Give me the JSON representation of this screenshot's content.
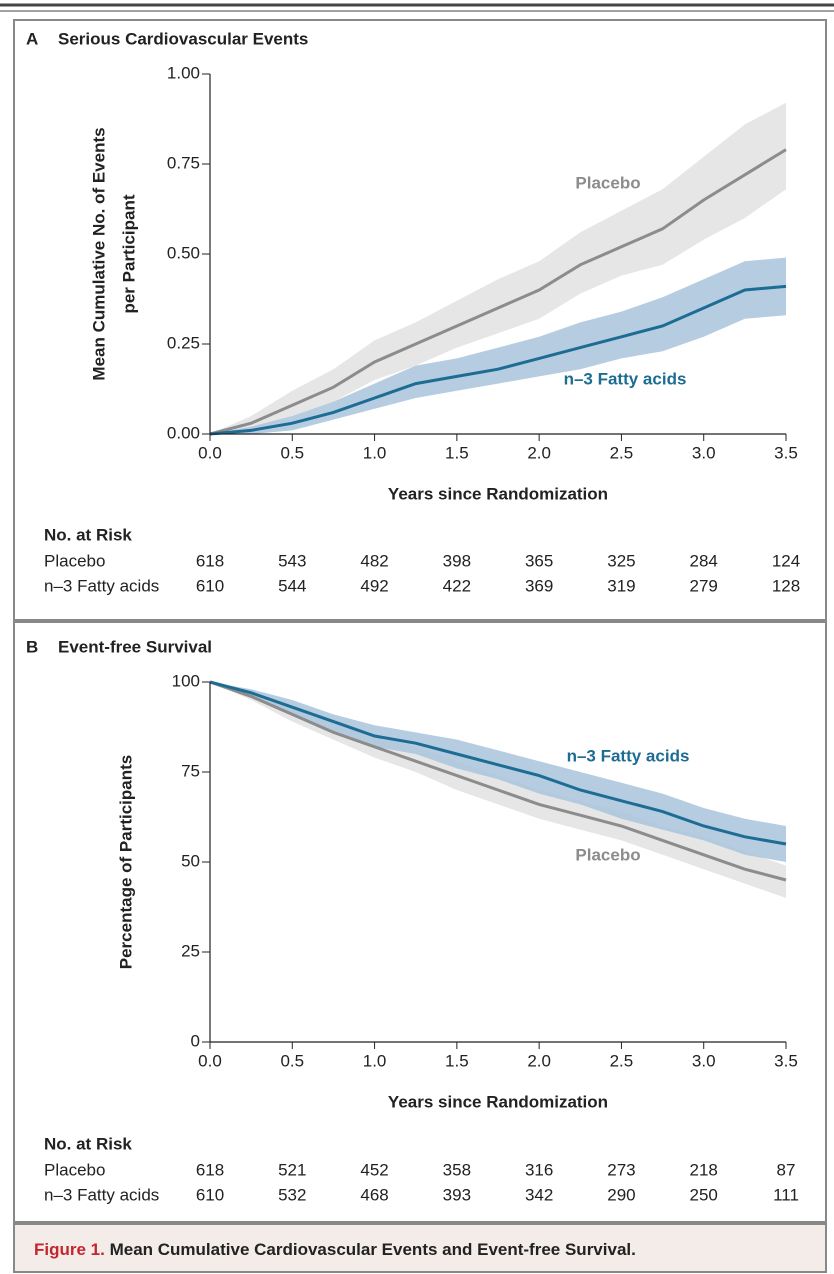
{
  "chart_data": [
    {
      "type": "line",
      "panel": "A",
      "title": "Serious Cardiovascular Events",
      "xlabel": "Years since Randomization",
      "ylabel": [
        "Mean Cumulative No. of Events",
        "per Participant"
      ],
      "x": [
        0,
        0.25,
        0.5,
        0.75,
        1.0,
        1.25,
        1.5,
        1.75,
        2.0,
        2.25,
        2.5,
        2.75,
        3.0,
        3.25,
        3.5
      ],
      "series": [
        {
          "name": "Placebo",
          "color": "#8c8c8c",
          "band_color": "#e2e2e2",
          "values": [
            0,
            0.03,
            0.08,
            0.13,
            0.2,
            0.25,
            0.3,
            0.35,
            0.4,
            0.47,
            0.52,
            0.57,
            0.65,
            0.72,
            0.79
          ],
          "upper": [
            0,
            0.05,
            0.12,
            0.18,
            0.26,
            0.31,
            0.37,
            0.43,
            0.48,
            0.56,
            0.62,
            0.68,
            0.77,
            0.86,
            0.92
          ],
          "lower": [
            0,
            0.01,
            0.05,
            0.09,
            0.15,
            0.19,
            0.24,
            0.28,
            0.32,
            0.39,
            0.44,
            0.47,
            0.54,
            0.6,
            0.68
          ]
        },
        {
          "name": "n–3 Fatty acids",
          "color": "#1d6c94",
          "band_color": "#a8c3dc",
          "values": [
            0,
            0.01,
            0.03,
            0.06,
            0.1,
            0.14,
            0.16,
            0.18,
            0.21,
            0.24,
            0.27,
            0.3,
            0.35,
            0.4,
            0.41
          ],
          "upper": [
            0,
            0.02,
            0.05,
            0.09,
            0.14,
            0.19,
            0.21,
            0.24,
            0.27,
            0.31,
            0.34,
            0.38,
            0.43,
            0.48,
            0.49
          ],
          "lower": [
            0,
            0,
            0.01,
            0.04,
            0.07,
            0.1,
            0.12,
            0.14,
            0.16,
            0.18,
            0.21,
            0.23,
            0.27,
            0.32,
            0.33
          ]
        }
      ],
      "xlim": [
        0,
        3.5
      ],
      "xticks": [
        {
          "value": 0,
          "label": "0.0"
        },
        0.5,
        {
          "value": 1,
          "label": "1.0"
        },
        1.5,
        {
          "value": 2,
          "label": "2.0"
        },
        2.5,
        {
          "value": 3,
          "label": "3.0"
        },
        3.5
      ],
      "ylim": [
        0,
        1
      ],
      "yticks": [
        {
          "value": 0,
          "label": "0.00"
        },
        0.25,
        {
          "value": 0.5,
          "label": "0.50"
        },
        0.75,
        {
          "value": 1,
          "label": "1.00"
        }
      ],
      "risk_table": {
        "title": "No. at Risk",
        "rows": [
          {
            "name": "Placebo",
            "values": [
              618,
              543,
              482,
              398,
              365,
              325,
              284,
              124
            ]
          },
          {
            "name": "n–3 Fatty acids",
            "values": [
              610,
              544,
              492,
              422,
              369,
              319,
              279,
              128
            ]
          }
        ]
      }
    },
    {
      "type": "line",
      "panel": "B",
      "title": "Event-free Survival",
      "xlabel": "Years since Randomization",
      "ylabel": [
        "Percentage of Participants"
      ],
      "x": [
        0,
        0.25,
        0.5,
        0.75,
        1.0,
        1.25,
        1.5,
        1.75,
        2.0,
        2.25,
        2.5,
        2.75,
        3.0,
        3.25,
        3.5
      ],
      "series": [
        {
          "name": "Placebo",
          "color": "#8c8c8c",
          "band_color": "#e2e2e2",
          "values": [
            100,
            96,
            91,
            86,
            82,
            78,
            74,
            70,
            66,
            63,
            60,
            56,
            52,
            48,
            45
          ],
          "upper": [
            100,
            97,
            93,
            89,
            85,
            82,
            78,
            74,
            70,
            67,
            64,
            60,
            57,
            53,
            49
          ],
          "lower": [
            100,
            95,
            89,
            84,
            79,
            75,
            70,
            66,
            62,
            59,
            56,
            52,
            48,
            44,
            40
          ]
        },
        {
          "name": "n–3 Fatty acids",
          "color": "#1d6c94",
          "band_color": "#a8c3dc",
          "values": [
            100,
            97,
            93,
            89,
            85,
            83,
            80,
            77,
            74,
            70,
            67,
            64,
            60,
            57,
            55
          ],
          "upper": [
            100,
            98,
            95,
            91,
            88,
            86,
            84,
            81,
            78,
            75,
            72,
            69,
            65,
            62,
            60
          ],
          "lower": [
            100,
            96,
            91,
            86,
            82,
            80,
            76,
            73,
            69,
            66,
            62,
            59,
            56,
            52,
            50
          ]
        }
      ],
      "xlim": [
        0,
        3.5
      ],
      "xticks": [
        {
          "value": 0,
          "label": "0.0"
        },
        0.5,
        {
          "value": 1,
          "label": "1.0"
        },
        1.5,
        {
          "value": 2,
          "label": "2.0"
        },
        2.5,
        {
          "value": 3,
          "label": "3.0"
        },
        3.5
      ],
      "ylim": [
        0,
        100
      ],
      "yticks": [
        0,
        25,
        50,
        75,
        100
      ],
      "risk_table": {
        "title": "No. at Risk",
        "rows": [
          {
            "name": "Placebo",
            "values": [
              618,
              521,
              452,
              358,
              316,
              273,
              218,
              87
            ]
          },
          {
            "name": "n–3 Fatty acids",
            "values": [
              610,
              532,
              468,
              393,
              342,
              290,
              250,
              111
            ]
          }
        ]
      }
    }
  ],
  "caption": {
    "label": "Figure 1.",
    "text": "Mean Cumulative Cardiovascular Events and Event-free Survival."
  }
}
